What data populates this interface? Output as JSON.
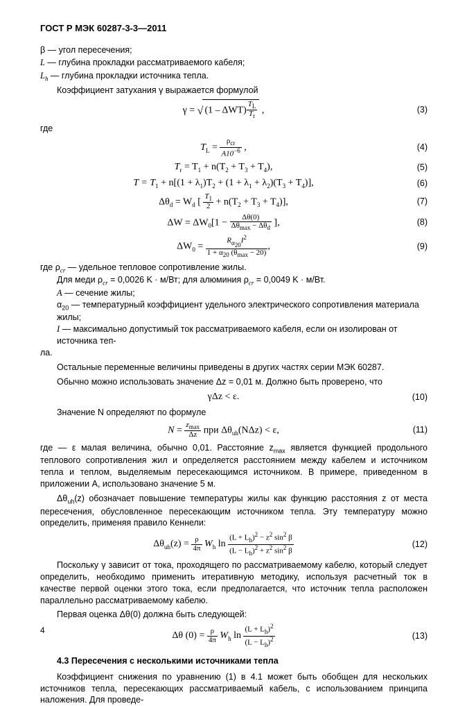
{
  "header": "ГОСТ Р МЭК 60287-3-3—2011",
  "defs": {
    "beta": "β — угол пересечения;",
    "L": "L — глубина прокладки рассматриваемого кабеля;",
    "Lh_sym": "L",
    "Lh_sub": "h",
    "Lh_rest": " — глубина прокладки источника тепла.",
    "atten": "Коэффициент  затухания γ выражается формулой"
  },
  "eq": {
    "e3": "(3)",
    "e4": "(4)",
    "e5": "(5)",
    "e6": "(6)",
    "e7": "(7)",
    "e8": "(8)",
    "e9": "(9)",
    "e10": "(10)",
    "e11": "(11)",
    "e12": "(12)",
    "e13": "(13)"
  },
  "txt": {
    "gde": "где",
    "gde_rho": "где ρ",
    "rho_sub": "cr",
    "rho_rest": " — удельное тепловое сопротивление жилы.",
    "copper": "Для меди  ρ",
    "copper_rest": " = 0,0026 K · м/Вт; для алюминия  ρ",
    "copper_end": " = 0,0049 K · м/Вт.",
    "A_def": "A — сечение жилы;",
    "alpha20": "α",
    "alpha20_sub": "20",
    "alpha20_rest": " — температурный коэффициент удельного электрического сопротивления материала жилы;",
    "I_def": "I — максимально допустимый ток рассматриваемого кабеля, если он изолирован от источника теп-",
    "la": "ла.",
    "other_vars": "Остальные переменные величины приведены в других частях серии МЭК 60287.",
    "usually": "Обычно можно использовать значение   Δz = 0,01 м. Должно быть проверено, что",
    "eq10": "γΔz < ε.",
    "N_def": "Значение N определяют по формуле",
    "N_frac_num": "z",
    "N_maxsub": "max",
    "N_frac_den": "Δz",
    "N_cond_pre": "   при   Δθ",
    "N_uh": "uh",
    "N_cond_post": "(NΔz) <  ε,",
    "eps_para": "где —  ε малая величина, обычно 0,01. Расстояние z",
    "eps_para2": " является функцией продольного теплового сопротивления жил и определяется расстоянием между кабелем и источником тепла и теплом, выделяемым пересекающимся источником. В примере, приведенном в приложении A, использовано значение 5 м.",
    "delta_uh_pre": "Δθ",
    "delta_uh_post": "(z) обозначает повышение температуры жилы как функцию расстояния z от места пересечения, обусловленное пересекающим источником тепла. Эту температуру можно определить, применяя правило Кеннели:",
    "since_gamma": "Поскольку  γ зависит от тока, проходящего по рассматриваемому кабелю, который следует определить, необходимо применить итеративную методику, используя расчетный ток в качестве первой оценки этого тока, если предполагается, что источник тепла расположен параллельно рассматриваемому кабелю.",
    "first_est": "Первая оценка  Δθ(0) должна быть следующей:",
    "sec43": "4.3  Пересечения с несколькими источниками тепла",
    "sec43_body": "Коэффициент снижения по уравнению (1) в 4.1 может быть обобщен для нескольких источников тепла, пересекающих рассматриваемый кабель, с использованием принципа наложения. Для проведе-"
  },
  "formulas": {
    "f3_inner": "(1 – ΔWT)",
    "f3_TL": "T",
    "f3_TLsub": "L",
    "f3_Tr": "T",
    "f3_Trsub": "r",
    "f4_TL": "T",
    "f4_Lsub": "L",
    "f4_eq": " = ",
    "f4_rho": "ρ",
    "f4_rhosub": "cr",
    "f4_den": "A10",
    "f4_denexp": "−6",
    "f5": "T",
    "f5r": " = T",
    "f5rest": " + n(T",
    "f5_2": " + T",
    "f5_3": " + T",
    "f5_end": "),",
    "f6": "T = T",
    "f6_rest": " + n[(1 + λ",
    "f6_1": ")T",
    "f6_2": " + (1 + λ",
    "f6_3": " +  λ",
    "f6_4": ")(T",
    "f6_5": " + T",
    "f6_6": ")],",
    "f7_pre": "Δθ",
    "f7_d": "d",
    "f7_eq": " = W",
    "f7_dd": "d",
    "f7_open": " [ ",
    "f7_t1": "T",
    "f7_2": "2",
    "f7_rest": " + n(T",
    "f7_end": ")],",
    "f8_pre": "ΔW =  ΔW",
    "f8_0": "0",
    "f8_open": "[1 − ",
    "f8_num": "Δθ(0)",
    "f8_den1": "Δθ",
    "f8_max": "max",
    "f8_minus": " − Δθ",
    "f8_dd": "d",
    "f8_close": " ],",
    "f9_pre": "ΔW",
    "f9_eq": " = ",
    "f9_num_pre": "R",
    "f9_a20": "α",
    "f9_20": "20",
    "f9_Isq": "I",
    "f9_sq": "2",
    "f9_den_pre": "1 + α",
    "f9_den_rest": " (θ",
    "f9_den_end": " − 20)",
    "f12_pre": "Δθ",
    "f12_z": "(z) = ",
    "f12_rho": "ρ",
    "f12_4pi": "4π",
    "f12_Wh": " W",
    "f12_h": "h",
    "f12_ln": " ln ",
    "f12_num": "(L + L",
    "f12_sq": ")",
    "f12_numexp": "2",
    "f12_minus": " − z",
    "f12_sin": " sin",
    "f12_beta": " β",
    "f12_den": "(L − L",
    "f12_plus": " + z",
    "f13_pre": "Δθ (0) = ",
    "f13_num": "(L + L",
    "f13_den": "(L − L"
  },
  "pagenum": "4"
}
